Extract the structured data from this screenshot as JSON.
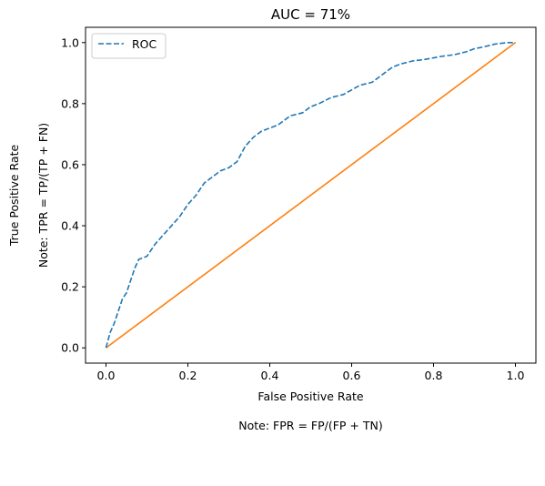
{
  "chart_data": {
    "type": "line",
    "title": "AUC = 71%",
    "xlabel": "False Positive Rate",
    "ylabel": "True Positive Rate",
    "ylabel_note": "Note: TPR = TP/(TP + FN)",
    "xlabel_note": "Note: FPR = FP/(FP + TN)",
    "xlim": [
      -0.05,
      1.05
    ],
    "ylim": [
      -0.05,
      1.05
    ],
    "x_ticks": [
      0.0,
      0.2,
      0.4,
      0.6,
      0.8,
      1.0
    ],
    "x_tick_labels": [
      "0.0",
      "0.2",
      "0.4",
      "0.6",
      "0.8",
      "1.0"
    ],
    "y_ticks": [
      0.0,
      0.2,
      0.4,
      0.6,
      0.8,
      1.0
    ],
    "y_tick_labels": [
      "0.0",
      "0.2",
      "0.4",
      "0.6",
      "0.8",
      "1.0"
    ],
    "grid": false,
    "legend_placement": "top-left",
    "series": [
      {
        "name": "ROC",
        "color": "#1f77b4",
        "style": "dashed",
        "x": [
          0.0,
          0.01,
          0.02,
          0.03,
          0.04,
          0.05,
          0.06,
          0.07,
          0.08,
          0.09,
          0.1,
          0.12,
          0.14,
          0.16,
          0.18,
          0.2,
          0.22,
          0.24,
          0.26,
          0.28,
          0.3,
          0.32,
          0.34,
          0.36,
          0.38,
          0.4,
          0.42,
          0.45,
          0.48,
          0.5,
          0.52,
          0.55,
          0.58,
          0.6,
          0.62,
          0.65,
          0.68,
          0.7,
          0.72,
          0.75,
          0.78,
          0.8,
          0.82,
          0.85,
          0.88,
          0.9,
          0.92,
          0.95,
          0.98,
          1.0
        ],
        "y": [
          0.0,
          0.05,
          0.08,
          0.12,
          0.16,
          0.18,
          0.22,
          0.26,
          0.29,
          0.295,
          0.3,
          0.34,
          0.37,
          0.4,
          0.43,
          0.47,
          0.5,
          0.54,
          0.56,
          0.58,
          0.59,
          0.61,
          0.66,
          0.69,
          0.71,
          0.72,
          0.73,
          0.76,
          0.77,
          0.79,
          0.8,
          0.82,
          0.83,
          0.845,
          0.86,
          0.87,
          0.9,
          0.92,
          0.93,
          0.94,
          0.945,
          0.95,
          0.955,
          0.96,
          0.97,
          0.98,
          0.985,
          0.995,
          1.0,
          1.0
        ]
      },
      {
        "name": "",
        "color": "#ff7f0e",
        "style": "solid",
        "x": [
          0.0,
          1.0
        ],
        "y": [
          0.0,
          1.0
        ]
      }
    ]
  }
}
